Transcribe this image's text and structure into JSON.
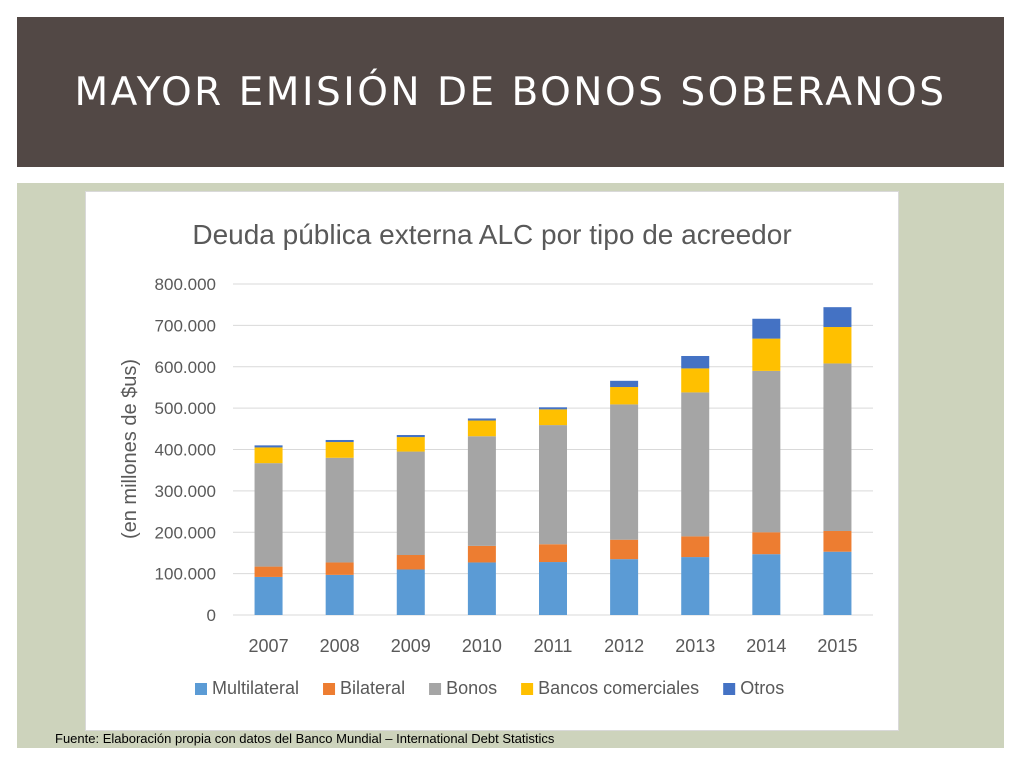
{
  "slide": {
    "title": "MAYOR EMISIÓN DE BONOS SOBERANOS",
    "source": "Fuente: Elaboración propia con datos del Banco Mundial – International Debt Statistics"
  },
  "colors": {
    "title_bar": "#524845",
    "panel": "#cdd3bc",
    "Multilateral": "#5b9bd5",
    "Bilateral": "#ed7d31",
    "Bonos": "#a5a5a5",
    "Bancos comerciales": "#ffc000",
    "Otros": "#4472c4"
  },
  "chart_data": {
    "type": "bar",
    "stacked": true,
    "title": "Deuda pública externa ALC por tipo de acreedor",
    "ylabel": "(en millones de $us)",
    "xlabel": "",
    "ylim": [
      0,
      800000
    ],
    "yticks": [
      0,
      100000,
      200000,
      300000,
      400000,
      500000,
      600000,
      700000,
      800000
    ],
    "ytick_labels": [
      "0",
      "100.000",
      "200.000",
      "300.000",
      "400.000",
      "500.000",
      "600.000",
      "700.000",
      "800.000"
    ],
    "grid": true,
    "legend": "bottom",
    "categories": [
      "2007",
      "2008",
      "2009",
      "2010",
      "2011",
      "2012",
      "2013",
      "2014",
      "2015"
    ],
    "series": [
      {
        "name": "Multilateral",
        "values": [
          92000,
          97000,
          110000,
          127000,
          128000,
          135000,
          140000,
          147000,
          153000
        ]
      },
      {
        "name": "Bilateral",
        "values": [
          25000,
          30000,
          35000,
          40000,
          43000,
          47000,
          50000,
          53000,
          50000
        ]
      },
      {
        "name": "Bonos",
        "values": [
          250000,
          253000,
          250000,
          265000,
          288000,
          327000,
          348000,
          390000,
          405000
        ]
      },
      {
        "name": "Bancos comerciales",
        "values": [
          38000,
          38000,
          35000,
          38000,
          38000,
          42000,
          58000,
          78000,
          88000
        ]
      },
      {
        "name": "Otros",
        "values": [
          5000,
          5000,
          5000,
          5000,
          5000,
          15000,
          30000,
          48000,
          48000
        ]
      }
    ]
  }
}
